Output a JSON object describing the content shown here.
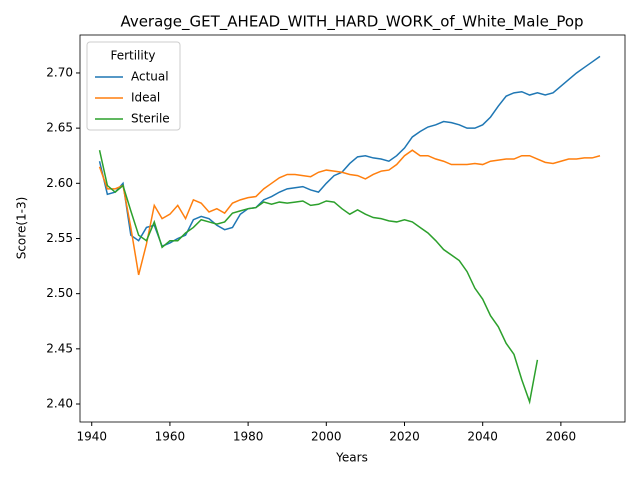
{
  "chart_data": {
    "type": "line",
    "title": "Average_GET_AHEAD_WITH_HARD_WORK_of_White_Male_Pop",
    "x_label": "Years",
    "y_label": "Score(1-3)",
    "legend_title": "Fertility",
    "legend": "upper left",
    "x": [
      1942,
      1944,
      1946,
      1948,
      1950,
      1952,
      1954,
      1956,
      1958,
      1960,
      1962,
      1964,
      1966,
      1968,
      1970,
      1972,
      1974,
      1976,
      1978,
      1980,
      1982,
      1984,
      1986,
      1988,
      1990,
      1992,
      1994,
      1996,
      1998,
      2000,
      2002,
      2004,
      2006,
      2008,
      2010,
      2012,
      2014,
      2016,
      2018,
      2020,
      2022,
      2024,
      2026,
      2028,
      2030,
      2032,
      2034,
      2036,
      2038,
      2040,
      2042,
      2044,
      2046,
      2048,
      2050,
      2052,
      2054,
      2056,
      2058,
      2060,
      2062,
      2064,
      2066,
      2068,
      2070
    ],
    "series": [
      {
        "name": "Actual",
        "color": "#1f77b4",
        "values": [
          2.62,
          2.59,
          2.592,
          2.6,
          2.553,
          2.548,
          2.56,
          2.562,
          2.543,
          2.546,
          2.55,
          2.553,
          2.567,
          2.57,
          2.568,
          2.562,
          2.558,
          2.56,
          2.572,
          2.577,
          2.578,
          2.585,
          2.588,
          2.592,
          2.595,
          2.596,
          2.597,
          2.594,
          2.592,
          2.6,
          2.607,
          2.61,
          2.618,
          2.624,
          2.625,
          2.623,
          2.622,
          2.62,
          2.625,
          2.632,
          2.642,
          2.647,
          2.651,
          2.653,
          2.656,
          2.655,
          2.653,
          2.65,
          2.65,
          2.653,
          2.66,
          2.67,
          2.679,
          2.682,
          2.683,
          2.68,
          2.682,
          2.68,
          2.682,
          2.688,
          2.694,
          2.7,
          2.705,
          2.71,
          2.715
        ]
      },
      {
        "name": "Ideal",
        "color": "#ff7f0e",
        "values": [
          2.615,
          2.595,
          2.595,
          2.598,
          2.56,
          2.517,
          2.545,
          2.58,
          2.568,
          2.572,
          2.58,
          2.568,
          2.585,
          2.582,
          2.574,
          2.577,
          2.573,
          2.582,
          2.585,
          2.587,
          2.588,
          2.595,
          2.6,
          2.605,
          2.608,
          2.608,
          2.607,
          2.606,
          2.61,
          2.612,
          2.611,
          2.61,
          2.608,
          2.607,
          2.604,
          2.608,
          2.611,
          2.612,
          2.617,
          2.625,
          2.63,
          2.625,
          2.625,
          2.622,
          2.62,
          2.617,
          2.617,
          2.617,
          2.618,
          2.617,
          2.62,
          2.621,
          2.622,
          2.622,
          2.625,
          2.625,
          2.622,
          2.619,
          2.618,
          2.62,
          2.622,
          2.622,
          2.623,
          2.623,
          2.625
        ]
      },
      {
        "name": "Sterile",
        "color": "#2ca02c",
        "values": [
          2.63,
          2.598,
          2.592,
          2.598,
          2.575,
          2.553,
          2.548,
          2.565,
          2.542,
          2.548,
          2.548,
          2.555,
          2.56,
          2.567,
          2.565,
          2.563,
          2.565,
          2.573,
          2.575,
          2.577,
          2.578,
          2.583,
          2.581,
          2.583,
          2.582,
          2.583,
          2.584,
          2.58,
          2.581,
          2.584,
          2.583,
          2.577,
          2.572,
          2.576,
          2.572,
          2.569,
          2.568,
          2.566,
          2.565,
          2.567,
          2.565,
          2.56,
          2.555,
          2.548,
          2.54,
          2.535,
          2.53,
          2.52,
          2.505,
          2.495,
          2.48,
          2.47,
          2.455,
          2.445,
          2.422,
          2.402,
          2.44,
          null,
          null,
          null,
          null,
          null,
          null,
          null,
          null
        ]
      }
    ],
    "xlim": [
      1937,
      2076.4
    ],
    "xticks": [
      1940,
      1960,
      1980,
      2000,
      2020,
      2040,
      2060
    ],
    "ylim": [
      2.3837,
      2.7344
    ],
    "yticks": [
      {
        "value": 2.4,
        "label": "2.40"
      },
      {
        "value": 2.45,
        "label": "2.45"
      },
      {
        "value": 2.5,
        "label": "2.50"
      },
      {
        "value": 2.55,
        "label": "2.55"
      },
      {
        "value": 2.6,
        "label": "2.60"
      },
      {
        "value": 2.65,
        "label": "2.65"
      },
      {
        "value": 2.7,
        "label": "2.70"
      }
    ]
  }
}
